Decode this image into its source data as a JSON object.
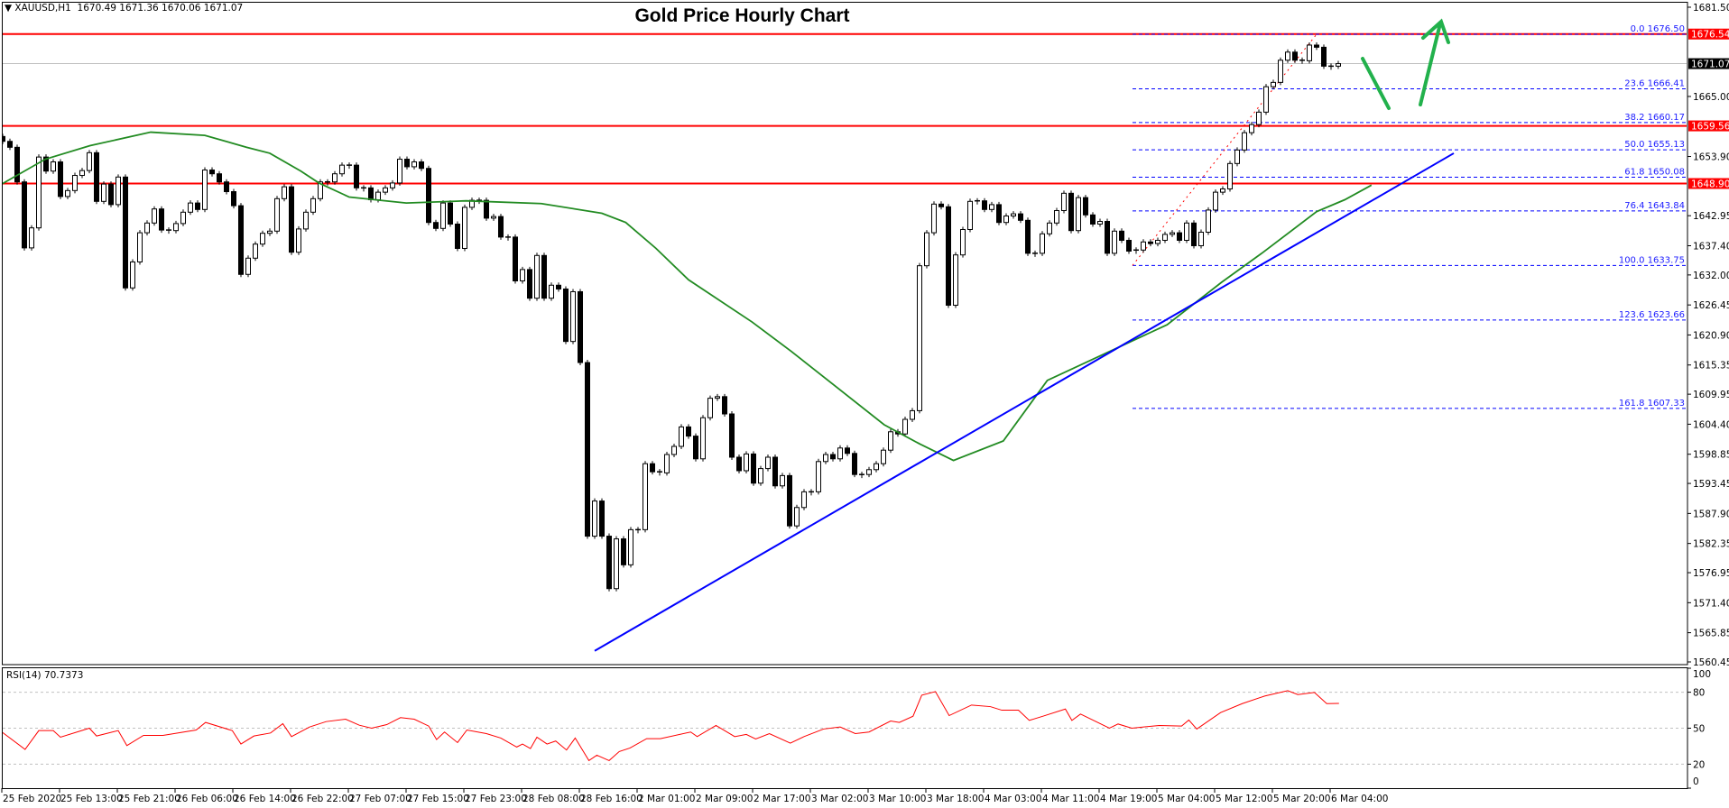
{
  "header": {
    "symbol_icon": "triangle-down-icon",
    "symbol": "XAUUSD,H1",
    "ohlc": "1670.49 1671.36 1670.06 1671.07"
  },
  "title": "Gold Price Hourly Chart",
  "colors": {
    "bull_body": "#ffffff",
    "bear_body": "#000000",
    "ma": "#228b22",
    "trendline": "#0000ff",
    "levels": "#ff0000",
    "fib": "#0000ff",
    "rsi": "#ff0000",
    "arrows": "#22b14c",
    "bid_line": "#c0c0c0"
  },
  "chart_data": {
    "type": "candlestick",
    "symbol": "XAUUSD",
    "timeframe": "H1",
    "ylim": [
      1560.45,
      1681.5
    ],
    "y_ticks": [
      "1681.50",
      "1665.00",
      "1653.90",
      "1642.95",
      "1637.40",
      "1632.00",
      "1626.45",
      "1620.90",
      "1615.35",
      "1609.95",
      "1604.40",
      "1598.85",
      "1593.45",
      "1587.90",
      "1582.35",
      "1576.95",
      "1571.40",
      "1565.85",
      "1560.45"
    ],
    "x_ticks": [
      "25 Feb 2020",
      "25 Feb 13:00",
      "25 Feb 21:00",
      "26 Feb 06:00",
      "26 Feb 14:00",
      "26 Feb 22:00",
      "27 Feb 07:00",
      "27 Feb 15:00",
      "27 Feb 23:00",
      "28 Feb 08:00",
      "28 Feb 16:00",
      "2 Mar 01:00",
      "2 Mar 09:00",
      "2 Mar 17:00",
      "3 Mar 02:00",
      "3 Mar 10:00",
      "3 Mar 18:00",
      "4 Mar 03:00",
      "4 Mar 11:00",
      "4 Mar 19:00",
      "5 Mar 04:00",
      "5 Mar 12:00",
      "5 Mar 20:00",
      "6 Mar 04:00"
    ],
    "first_open": 1657.6,
    "closes": [
      1656.7,
      1655.6,
      1649.2,
      1637.0,
      1640.7,
      1653.8,
      1651.2,
      1652.9,
      1646.5,
      1647.6,
      1650.4,
      1651.3,
      1654.6,
      1645.6,
      1648.8,
      1645.0,
      1650.1,
      1629.6,
      1634.4,
      1639.8,
      1641.6,
      1644.2,
      1640.3,
      1640.2,
      1641.5,
      1643.6,
      1645.3,
      1644.1,
      1651.4,
      1650.7,
      1649.2,
      1647.4,
      1644.8,
      1632.1,
      1635.1,
      1637.7,
      1639.7,
      1640.1,
      1646.1,
      1648.3,
      1636.2,
      1640.5,
      1643.6,
      1646.1,
      1649.2,
      1649.2,
      1650.7,
      1652.3,
      1652.3,
      1648.1,
      1648.1,
      1645.9,
      1647.3,
      1648.1,
      1649.0,
      1653.4,
      1652.0,
      1652.9,
      1651.7,
      1641.7,
      1640.6,
      1645.3,
      1641.4,
      1636.9,
      1644.5,
      1645.8,
      1645.8,
      1642.5,
      1642.8,
      1639.0,
      1639.0,
      1630.9,
      1633.0,
      1627.7,
      1635.6,
      1627.7,
      1630.1,
      1629.4,
      1619.7,
      1628.9,
      1615.8,
      1583.7,
      1590.2,
      1583.7,
      1574.0,
      1583.2,
      1578.4,
      1584.9,
      1584.9,
      1597.1,
      1595.6,
      1595.4,
      1598.8,
      1600.3,
      1603.9,
      1602.2,
      1598.0,
      1605.6,
      1609.2,
      1609.5,
      1606.3,
      1598.3,
      1595.8,
      1598.9,
      1593.5,
      1596.2,
      1598.3,
      1593.0,
      1594.9,
      1585.6,
      1589.0,
      1591.9,
      1591.9,
      1597.5,
      1598.8,
      1598.0,
      1600.0,
      1599.0,
      1595.1,
      1595.1,
      1596.0,
      1597.1,
      1599.6,
      1603.0,
      1602.6,
      1605.3,
      1606.9,
      1633.7,
      1639.8,
      1645.1,
      1644.6,
      1626.4,
      1635.7,
      1640.4,
      1645.6,
      1645.7,
      1644.1,
      1645.0,
      1641.7,
      1642.9,
      1643.3,
      1642.1,
      1636.0,
      1636.0,
      1639.6,
      1641.6,
      1643.9,
      1647.1,
      1640.2,
      1646.3,
      1643.1,
      1641.4,
      1641.9,
      1636.0,
      1640.1,
      1638.4,
      1636.4,
      1636.6,
      1638.1,
      1637.8,
      1638.4,
      1639.5,
      1639.8,
      1638.4,
      1641.6,
      1637.4,
      1639.9,
      1644.0,
      1647.3,
      1647.9,
      1652.6,
      1655.1,
      1658.3,
      1659.8,
      1662.1,
      1666.8,
      1667.6,
      1671.7,
      1673.2,
      1671.7,
      1671.6,
      1674.5,
      1674.1,
      1670.6,
      1670.6,
      1671.07
    ],
    "moving_average": [
      [
        0,
        1648.9
      ],
      [
        5.9,
        1653.4
      ],
      [
        12.1,
        1655.9
      ],
      [
        20.5,
        1658.4
      ],
      [
        28,
        1657.8
      ],
      [
        33.8,
        1655.6
      ],
      [
        37,
        1654.5
      ],
      [
        41.3,
        1651.2
      ],
      [
        43.8,
        1649.0
      ],
      [
        48,
        1646.4
      ],
      [
        55.9,
        1645.3
      ],
      [
        64.2,
        1645.7
      ],
      [
        74.6,
        1645.2
      ],
      [
        83,
        1643.4
      ],
      [
        86.3,
        1641.7
      ],
      [
        90.5,
        1636.9
      ],
      [
        95,
        1631.1
      ],
      [
        103.8,
        1623.3
      ],
      [
        109.2,
        1617.9
      ],
      [
        115,
        1611.8
      ],
      [
        122.1,
        1604.3
      ],
      [
        127.1,
        1600.7
      ],
      [
        131.7,
        1597.7
      ],
      [
        138.6,
        1601.3
      ],
      [
        144.7,
        1612.5
      ],
      [
        161.3,
        1622.8
      ],
      [
        168.8,
        1630.6
      ],
      [
        174.6,
        1636.2
      ],
      [
        182,
        1643.7
      ],
      [
        185.9,
        1645.9
      ],
      [
        189.6,
        1648.6
      ]
    ],
    "trendline": [
      [
        82,
        1562.5
      ],
      [
        201,
        1654.5
      ]
    ],
    "horizontal_levels": [
      "1676.54",
      "1659.56",
      "1648.90"
    ],
    "current_price": "1671.07",
    "fibonacci": {
      "from": [
        156.5,
        1633.75
      ],
      "to": [
        182,
        1676.5
      ],
      "levels": [
        {
          "label": "0.0 1676.50",
          "price": 1676.5
        },
        {
          "label": "23.6 1666.41",
          "price": 1666.41
        },
        {
          "label": "38.2 1660.17",
          "price": 1660.17
        },
        {
          "label": "50.0 1655.13",
          "price": 1655.13
        },
        {
          "label": "61.8 1650.08",
          "price": 1650.08
        },
        {
          "label": "76.4 1643.84",
          "price": 1643.84
        },
        {
          "label": "100.0 1633.75",
          "price": 1633.75
        },
        {
          "label": "123.6 1623.66",
          "price": 1623.66
        },
        {
          "label": "161.8 1607.33",
          "price": 1607.33
        }
      ]
    },
    "rsi": {
      "label": "RSI(14) 70.7373",
      "ylim": [
        0,
        100
      ],
      "ticks": [
        "100",
        "80",
        "50",
        "20",
        "0"
      ],
      "levels": [
        80,
        50,
        20
      ],
      "points": [
        [
          0,
          46.3
        ],
        [
          3.1,
          32.3
        ],
        [
          5,
          48
        ],
        [
          7,
          48
        ],
        [
          8,
          42.5
        ],
        [
          12,
          50
        ],
        [
          13,
          43.5
        ],
        [
          16,
          48
        ],
        [
          17.2,
          35.5
        ],
        [
          19.5,
          44
        ],
        [
          22.2,
          44
        ],
        [
          26.8,
          48.5
        ],
        [
          28.1,
          54.8
        ],
        [
          31.8,
          48
        ],
        [
          33,
          36.8
        ],
        [
          34.8,
          43.5
        ],
        [
          37.1,
          46
        ],
        [
          38.8,
          53.8
        ],
        [
          40,
          43
        ],
        [
          42.5,
          51
        ],
        [
          44.8,
          55.5
        ],
        [
          47.5,
          57.5
        ],
        [
          49.4,
          52.5
        ],
        [
          51.1,
          50
        ],
        [
          53.2,
          53
        ],
        [
          55.1,
          58.8
        ],
        [
          57,
          57.5
        ],
        [
          59,
          51.8
        ],
        [
          60.1,
          40.5
        ],
        [
          61.2,
          46.8
        ],
        [
          63,
          38
        ],
        [
          64.3,
          48.5
        ],
        [
          67,
          45.5
        ],
        [
          69,
          41.8
        ],
        [
          71.2,
          34.3
        ],
        [
          72,
          36.8
        ],
        [
          73.1,
          33
        ],
        [
          74,
          42.5
        ],
        [
          75.4,
          36.8
        ],
        [
          76.6,
          39.3
        ],
        [
          78.1,
          31.8
        ],
        [
          79.3,
          41.8
        ],
        [
          81.2,
          23
        ],
        [
          82.3,
          27.5
        ],
        [
          84,
          23
        ],
        [
          85.4,
          30.5
        ],
        [
          86.9,
          33.5
        ],
        [
          89.2,
          41.3
        ],
        [
          91.1,
          41.3
        ],
        [
          95.3,
          46.8
        ],
        [
          96.2,
          43
        ],
        [
          98.8,
          52.3
        ],
        [
          101.4,
          43
        ],
        [
          103,
          44.8
        ],
        [
          104.3,
          41
        ],
        [
          106.2,
          45.5
        ],
        [
          109.1,
          37.5
        ],
        [
          111,
          43
        ],
        [
          113.7,
          49.3
        ],
        [
          116,
          51
        ],
        [
          118.1,
          45.5
        ],
        [
          120,
          46.8
        ],
        [
          123,
          56
        ],
        [
          124.2,
          54.8
        ],
        [
          126.1,
          60
        ],
        [
          127.3,
          77.5
        ],
        [
          129.2,
          80.5
        ],
        [
          131.1,
          60.5
        ],
        [
          134.2,
          69.3
        ],
        [
          136.8,
          68
        ],
        [
          138.4,
          65
        ],
        [
          140.7,
          65
        ],
        [
          142.2,
          56.5
        ],
        [
          144.1,
          60
        ],
        [
          147.2,
          66
        ],
        [
          148.1,
          56.5
        ],
        [
          149.3,
          61.8
        ],
        [
          153.3,
          50
        ],
        [
          154.5,
          53.5
        ],
        [
          156.4,
          50
        ],
        [
          160.2,
          52.3
        ],
        [
          163.3,
          51.8
        ],
        [
          164.3,
          56.8
        ],
        [
          165.4,
          49.3
        ],
        [
          168.7,
          63
        ],
        [
          171.7,
          70.5
        ],
        [
          174.8,
          76.8
        ],
        [
          178,
          81.3
        ],
        [
          179.4,
          78
        ],
        [
          181.7,
          79.8
        ],
        [
          183.4,
          70.5
        ],
        [
          185.1,
          70.7
        ]
      ]
    }
  }
}
